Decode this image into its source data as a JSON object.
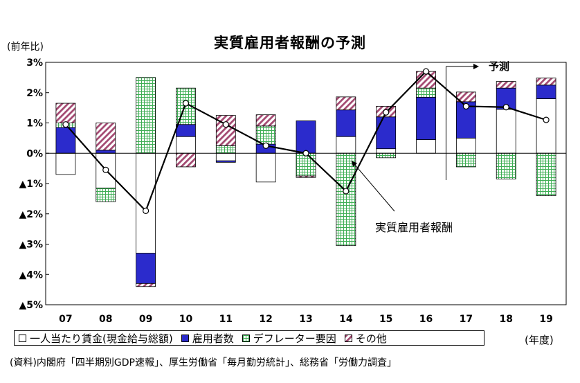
{
  "chart_data": {
    "type": "bar",
    "title": "実質雇用者報酬の予測",
    "ylabel": "(前年比)",
    "xunit": "(年度)",
    "categories": [
      "07",
      "08",
      "09",
      "10",
      "11",
      "12",
      "13",
      "14",
      "15",
      "16",
      "17",
      "18",
      "19"
    ],
    "ylim": [
      -5,
      3
    ],
    "yticks": [
      3,
      2,
      1,
      0,
      -1,
      -2,
      -3,
      -4,
      -5
    ],
    "ytick_labels": [
      "3%",
      "2%",
      "1%",
      "0%",
      "▲1%",
      "▲2%",
      "▲3%",
      "▲4%",
      "▲5%"
    ],
    "series": [
      {
        "name": "一人当たり賃金(現金給与総額)",
        "kind": "stacked-bar",
        "color": "#ffffff",
        "values": [
          -0.7,
          -1.15,
          -3.3,
          0.55,
          -0.25,
          -0.95,
          0.0,
          0.55,
          0.15,
          0.45,
          0.5,
          1.45,
          1.8
        ]
      },
      {
        "name": "雇用者数",
        "kind": "stacked-bar",
        "color": "#2b2bcc",
        "values": [
          0.85,
          0.1,
          -1.0,
          0.4,
          -0.05,
          0.3,
          1.07,
          0.88,
          1.05,
          1.4,
          1.2,
          0.7,
          0.45
        ]
      },
      {
        "name": "デフレーター要因",
        "kind": "stacked-bar",
        "color": "#5bbd6b",
        "values": [
          0.15,
          -0.45,
          2.5,
          1.2,
          0.25,
          0.6,
          -0.75,
          -3.05,
          -0.15,
          0.3,
          -0.45,
          -0.85,
          -1.4
        ]
      },
      {
        "name": "その他",
        "kind": "stacked-bar",
        "color": "#a44a72",
        "values": [
          0.65,
          0.9,
          -0.1,
          -0.45,
          1.0,
          0.37,
          -0.05,
          0.43,
          0.35,
          0.55,
          0.32,
          0.22,
          0.23
        ]
      },
      {
        "name": "実質雇用者報酬",
        "kind": "line",
        "color": "#000000",
        "values": [
          0.95,
          -0.55,
          -1.9,
          1.65,
          0.95,
          0.25,
          0.0,
          -1.25,
          1.35,
          2.7,
          1.55,
          1.52,
          1.1
        ]
      }
    ],
    "annotations": {
      "line_label": "実質雇用者報酬",
      "forecast_label": "予測"
    },
    "grid": false,
    "legend": "bottom"
  },
  "source_note": "(資料)内閣府「四半期別GDP速報」、厚生労働省「毎月勤労統計」、総務省「労働力調査」"
}
